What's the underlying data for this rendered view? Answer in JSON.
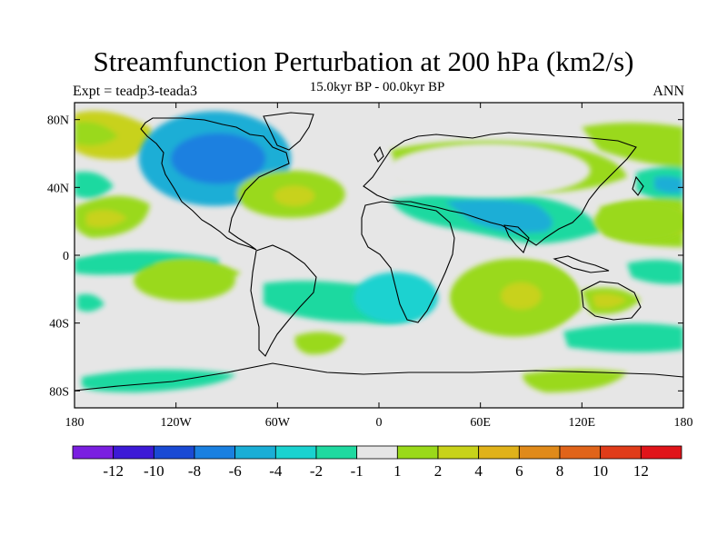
{
  "title": "Streamfunction Perturbation at 200 hPa (km2/s)",
  "subtitle": "15.0kyr BP - 00.0kyr BP",
  "left_label": "Expt = teadp3-teada3",
  "right_label": "ANN",
  "map": {
    "projection": "cylindrical-equidistant",
    "lon_range": [
      -180,
      180
    ],
    "lat_range": [
      -90,
      90
    ],
    "lon_ticks": [
      {
        "value": -180,
        "label": "180"
      },
      {
        "value": -120,
        "label": "120W"
      },
      {
        "value": -60,
        "label": "60W"
      },
      {
        "value": 0,
        "label": "0"
      },
      {
        "value": 60,
        "label": "60E"
      },
      {
        "value": 120,
        "label": "120E"
      },
      {
        "value": 180,
        "label": "180"
      }
    ],
    "lat_ticks": [
      {
        "value": 80,
        "label": "80N"
      },
      {
        "value": 40,
        "label": "40N"
      },
      {
        "value": 0,
        "label": "0"
      },
      {
        "value": -40,
        "label": "40S"
      },
      {
        "value": -80,
        "label": "80S"
      }
    ],
    "background_color": "#e6e6e6",
    "field_regions": [
      {
        "name": "canada-low",
        "lon": -97,
        "lat": 57,
        "rx_deg": 45,
        "ry_deg": 28,
        "level": -4
      },
      {
        "name": "canada-low-core",
        "lon": -95,
        "lat": 57,
        "rx_deg": 28,
        "ry_deg": 15,
        "level": -6
      },
      {
        "name": "atlantic-high",
        "lon": -52,
        "lat": 36,
        "rx_deg": 32,
        "ry_deg": 14,
        "level": 2
      },
      {
        "name": "atlantic-high-core",
        "lon": -50,
        "lat": 35,
        "rx_deg": 12,
        "ry_deg": 6,
        "level": 4
      },
      {
        "name": "eurasia-high",
        "lon": 65,
        "lat": 50,
        "rx_deg": 60,
        "ry_deg": 16,
        "level": 1
      },
      {
        "name": "south-indian-high",
        "lon": 80,
        "lat": -25,
        "rx_deg": 38,
        "ry_deg": 23,
        "level": 2
      },
      {
        "name": "south-indian-high-core",
        "lon": 84,
        "lat": -24,
        "rx_deg": 12,
        "ry_deg": 8,
        "level": 4
      },
      {
        "name": "south-atlantic-low",
        "lon": 10,
        "lat": -25,
        "rx_deg": 25,
        "ry_deg": 15,
        "level": -2
      },
      {
        "name": "south-pacific-high",
        "lon": -115,
        "lat": -15,
        "rx_deg": 30,
        "ry_deg": 12,
        "level": 2
      },
      {
        "name": "west-pacific-high",
        "lon": 155,
        "lat": 20,
        "rx_deg": 28,
        "ry_deg": 12,
        "level": 2
      }
    ]
  },
  "colorbar": {
    "colors": [
      "#7a1fe0",
      "#3d1ad6",
      "#1a4ad4",
      "#1a80e0",
      "#1aaed6",
      "#1ad2d0",
      "#1fd9a0",
      "#e6e6e6",
      "#9ad91a",
      "#c8d21a",
      "#e0b21a",
      "#e08a1a",
      "#e0641a",
      "#e03c1a",
      "#e0141a"
    ],
    "labels": [
      "-12",
      "-10",
      "-8",
      "-6",
      "-4",
      "-2",
      "-1",
      "1",
      "2",
      "4",
      "6",
      "8",
      "10",
      "12"
    ]
  }
}
